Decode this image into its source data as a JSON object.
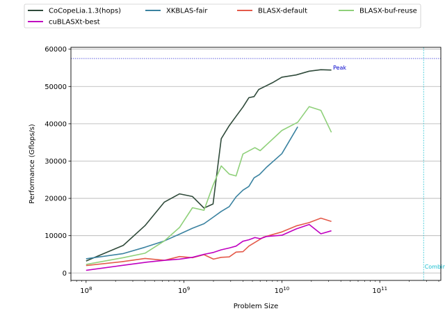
{
  "chart_data": {
    "type": "line",
    "xlabel": "Problem Size",
    "ylabel": "Performance (Gflops/s)",
    "xscale": "log",
    "xlim": [
      70000000,
      420000000000
    ],
    "ylim": [
      -2000,
      60500
    ],
    "x_ticks": [
      {
        "value": 100000000,
        "base": "10",
        "exp": "8"
      },
      {
        "value": 1000000000,
        "base": "10",
        "exp": "9"
      },
      {
        "value": 10000000000,
        "base": "10",
        "exp": "10"
      },
      {
        "value": 100000000000,
        "base": "10",
        "exp": "11"
      }
    ],
    "y_ticks": [
      0,
      10000,
      20000,
      30000,
      40000,
      50000,
      60000
    ],
    "grid": "horizontal",
    "legend": {
      "position": "top",
      "columns": 4
    },
    "annotations": [
      {
        "text": "Peak",
        "type": "hline",
        "y": 57500,
        "color": "#0000cc"
      },
      {
        "text": "Combined",
        "type": "vline",
        "x": 280000000000,
        "color": "#17becf"
      }
    ],
    "series": [
      {
        "name": "CoCopeLia.1.3(hops)",
        "color": "#2f4a3a",
        "points": [
          [
            100000000,
            3200
          ],
          [
            240000000,
            7400
          ],
          [
            400000000,
            12700
          ],
          [
            630000000,
            19000
          ],
          [
            900000000,
            21200
          ],
          [
            1220000000,
            20500
          ],
          [
            1600000000,
            17400
          ],
          [
            1980000000,
            18500
          ],
          [
            2400000000,
            36000
          ],
          [
            2900000000,
            39500
          ],
          [
            3400000000,
            42000
          ],
          [
            4000000000,
            44500
          ],
          [
            4600000000,
            47000
          ],
          [
            5200000000,
            47300
          ],
          [
            5800000000,
            49200
          ],
          [
            8000000000,
            51000
          ],
          [
            10000000000,
            52500
          ],
          [
            14000000000,
            53100
          ],
          [
            19000000000,
            54100
          ],
          [
            25000000000,
            54500
          ],
          [
            32000000000,
            54400
          ]
        ]
      },
      {
        "name": "XKBLAS-fair",
        "color": "#3a82a0",
        "points": [
          [
            100000000,
            3800
          ],
          [
            240000000,
            5200
          ],
          [
            400000000,
            6900
          ],
          [
            630000000,
            8600
          ],
          [
            900000000,
            10400
          ],
          [
            1220000000,
            12000
          ],
          [
            1600000000,
            13200
          ],
          [
            2000000000,
            15000
          ],
          [
            2400000000,
            16500
          ],
          [
            2900000000,
            17800
          ],
          [
            3400000000,
            20400
          ],
          [
            4000000000,
            22200
          ],
          [
            4600000000,
            23200
          ],
          [
            5200000000,
            25500
          ],
          [
            5900000000,
            26400
          ],
          [
            7000000000,
            28400
          ],
          [
            10000000000,
            32000
          ],
          [
            14500000000,
            39200
          ]
        ]
      },
      {
        "name": "BLASX-default",
        "color": "#e45a4a",
        "points": [
          [
            100000000,
            2000
          ],
          [
            230000000,
            3000
          ],
          [
            400000000,
            3900
          ],
          [
            630000000,
            3400
          ],
          [
            900000000,
            4400
          ],
          [
            1220000000,
            4100
          ],
          [
            1600000000,
            4900
          ],
          [
            2000000000,
            3700
          ],
          [
            2400000000,
            4200
          ],
          [
            2900000000,
            4300
          ],
          [
            3400000000,
            5600
          ],
          [
            4000000000,
            5700
          ],
          [
            4600000000,
            7200
          ],
          [
            6500000000,
            9600
          ],
          [
            10000000000,
            11000
          ],
          [
            14000000000,
            12600
          ],
          [
            19000000000,
            13500
          ],
          [
            25000000000,
            14700
          ],
          [
            32000000000,
            13800
          ]
        ]
      },
      {
        "name": "BLASX-buf-reuse",
        "color": "#8fd07a",
        "points": [
          [
            100000000,
            2300
          ],
          [
            240000000,
            4100
          ],
          [
            400000000,
            5300
          ],
          [
            630000000,
            8600
          ],
          [
            900000000,
            12200
          ],
          [
            1220000000,
            17500
          ],
          [
            1600000000,
            16800
          ],
          [
            1980000000,
            23500
          ],
          [
            2400000000,
            28700
          ],
          [
            2900000000,
            26500
          ],
          [
            3400000000,
            26000
          ],
          [
            4000000000,
            31900
          ],
          [
            5300000000,
            33600
          ],
          [
            6000000000,
            32800
          ],
          [
            10000000000,
            38200
          ],
          [
            14500000000,
            40400
          ],
          [
            19000000000,
            44600
          ],
          [
            25000000000,
            43600
          ],
          [
            32000000000,
            37700
          ]
        ]
      },
      {
        "name": "cuBLASXt-best",
        "color": "#c000c0",
        "points": [
          [
            100000000,
            700
          ],
          [
            230000000,
            2000
          ],
          [
            420000000,
            2900
          ],
          [
            640000000,
            3400
          ],
          [
            900000000,
            3700
          ],
          [
            1220000000,
            4200
          ],
          [
            1600000000,
            5000
          ],
          [
            2000000000,
            5500
          ],
          [
            2400000000,
            6200
          ],
          [
            2900000000,
            6700
          ],
          [
            3400000000,
            7200
          ],
          [
            4000000000,
            8500
          ],
          [
            4600000000,
            8900
          ],
          [
            5300000000,
            9500
          ],
          [
            6000000000,
            9200
          ],
          [
            7000000000,
            9800
          ],
          [
            10000000000,
            10100
          ],
          [
            14000000000,
            11800
          ],
          [
            19000000000,
            13000
          ],
          [
            25000000000,
            10500
          ],
          [
            32000000000,
            11300
          ]
        ]
      }
    ]
  }
}
